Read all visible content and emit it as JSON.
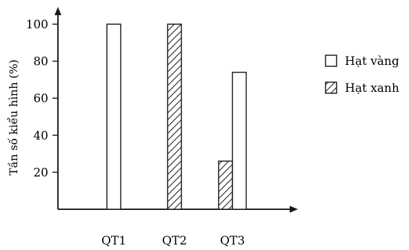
{
  "chart_data": {
    "type": "bar",
    "title": "",
    "xlabel": "",
    "ylabel": "Tần số kiểu hình (%)",
    "categories": [
      "QT1",
      "QT2",
      "QT3"
    ],
    "yticks": [
      20,
      40,
      60,
      80,
      100
    ],
    "ylim": [
      0,
      110
    ],
    "grid": false,
    "legend_position": "right",
    "series": [
      {
        "name": "Hạt xanh",
        "pattern": "hatched",
        "values": [
          0,
          100,
          26
        ]
      },
      {
        "name": "Hạt vàng",
        "pattern": "white",
        "values": [
          100,
          0,
          74
        ]
      }
    ],
    "colors": {
      "axis": "#1a1a1a",
      "bar_fill": "#ffffff",
      "hatch": "#1a1a1a"
    }
  }
}
